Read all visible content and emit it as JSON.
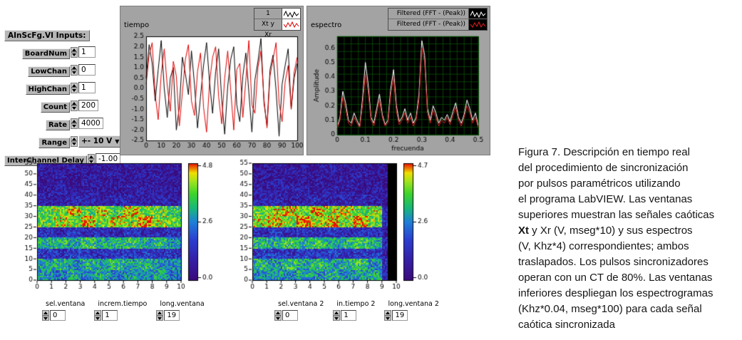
{
  "inputs_panel": {
    "title": "AInScFg.VI Inputs:",
    "fields": [
      {
        "label": "BoardNum",
        "value": "1"
      },
      {
        "label": "LowChan",
        "value": "0"
      },
      {
        "label": "HighChan",
        "value": "1"
      },
      {
        "label": "Count",
        "value": "200"
      },
      {
        "label": "Rate",
        "value": "4000"
      },
      {
        "label": "Range",
        "value": "+- 10 V"
      },
      {
        "label": "InterChannel Delay",
        "value": "-1.00"
      }
    ]
  },
  "time_plot": {
    "title": "tiempo",
    "legend": [
      {
        "label": "1"
      },
      {
        "label": "Xt y Xr"
      }
    ]
  },
  "spectrum_plot": {
    "title": "espectro",
    "legend": [
      {
        "label": "Filtered (FFT - (Peak))"
      },
      {
        "label": "Filtered (FFT - (Peak))"
      }
    ]
  },
  "left_controls": {
    "items": [
      {
        "label": "sel.ventana",
        "value": "0"
      },
      {
        "label": "increm.tiempo",
        "value": "1"
      },
      {
        "label": "long.ventana",
        "value": "19"
      }
    ]
  },
  "right_controls": {
    "items": [
      {
        "label": "sel.ventana 2",
        "value": "0"
      },
      {
        "label": "in.tiempo 2",
        "value": "1"
      },
      {
        "label": "long.ventana 2",
        "value": "19"
      }
    ]
  },
  "caption": {
    "lines": [
      "Figura 7. Descripción en tiempo real",
      "del procedimiento de sincronización",
      "por pulsos paramétricos utilizando",
      "el programa LabVIEW. Las ventanas",
      "superiores muestran las señales caóticas"
    ],
    "bold_word": "Xt",
    "line6_rest": " y Xr (V, mseg*10) y sus espectros",
    "lines_tail": [
      "(V, Khz*4) correspondientes; ambos",
      "traslapados. Los pulsos sincronizadores",
      "operan con un CT de 80%. Las ventanas",
      "inferiores despliegan los espectrogramas",
      "(Khz*0.04, mseg*100) para cada señal",
      "caótica sincronizada"
    ]
  },
  "chart_data": [
    {
      "id": "tiempo",
      "type": "line",
      "title": "tiempo",
      "xlim": [
        0,
        100
      ],
      "ylim": [
        -2.5,
        2.5
      ],
      "x_start": 0,
      "x_step": 2,
      "xticks": [
        "0",
        "10",
        "20",
        "30",
        "40",
        "50",
        "60",
        "70",
        "80",
        "90",
        "100"
      ],
      "yticks": [
        "2.5",
        "2.0",
        "1.5",
        "1.0",
        "0.5",
        "0.0",
        "-0.5",
        "-1.0",
        "-1.5",
        "-2.0",
        "-2.5"
      ],
      "plot_bg": "#ffffff",
      "legend_position": "top-right",
      "series": [
        {
          "name": "Xt",
          "color": "#000000",
          "values": [
            0.5,
            2.1,
            1.2,
            -0.6,
            0.9,
            2.3,
            0.0,
            -1.4,
            0.5,
            1.0,
            -2.0,
            -0.9,
            1.5,
            0.7,
            -0.3,
            1.8,
            0.2,
            -1.9,
            -0.4,
            1.1,
            2.2,
            0.3,
            -1.2,
            0.8,
            1.9,
            -0.5,
            -2.2,
            0.1,
            1.4,
            2.0,
            -0.8,
            -1.6,
            0.6,
            1.7,
            -0.2,
            -2.1,
            0.4,
            1.3,
            2.4,
            -0.7,
            -1.8,
            0.9,
            1.6,
            -0.1,
            -2.3,
            0.2,
            1.1,
            1.9,
            -1.0,
            0.5,
            1.2
          ]
        },
        {
          "name": "Xr",
          "color": "#e00000",
          "values": [
            0.2,
            1.6,
            2.2,
            -0.3,
            -1.5,
            0.7,
            1.9,
            0.1,
            -1.1,
            1.3,
            0.6,
            -1.8,
            -0.2,
            1.4,
            2.1,
            -0.6,
            -1.3,
            0.8,
            1.7,
            -0.9,
            -2.1,
            0.3,
            1.5,
            2.0,
            -0.4,
            -1.7,
            0.5,
            1.8,
            -0.1,
            -2.0,
            0.9,
            1.2,
            -1.4,
            0.4,
            2.3,
            -0.8,
            -1.2,
            1.0,
            1.8,
            -0.5,
            -1.9,
            0.6,
            1.4,
            2.2,
            -0.7,
            -1.6,
            0.3,
            1.1,
            -1.0,
            0.8,
            1.5
          ]
        }
      ]
    },
    {
      "id": "espectro",
      "type": "line",
      "title": "espectro",
      "xlabel": "frecuenda",
      "ylabel": "Amplitude",
      "xlim": [
        0,
        0.5
      ],
      "ylim": [
        0,
        0.68
      ],
      "x_start": 0,
      "x_step": 0.01,
      "xticks": [
        "0",
        "0.1",
        "0.2",
        "0.3",
        "0.4",
        "0.5"
      ],
      "yticks": [
        "0",
        "0.1",
        "0.2",
        "0.3",
        "0.4",
        "0.5",
        "0.6"
      ],
      "plot_bg": "#000000",
      "grid_color": "#0c6c0c",
      "legend_position": "top-right",
      "series": [
        {
          "name": "Filtered (FFT - (Peak))",
          "color": "#ffffff",
          "values": [
            0.05,
            0.12,
            0.3,
            0.22,
            0.1,
            0.08,
            0.15,
            0.1,
            0.06,
            0.25,
            0.5,
            0.35,
            0.12,
            0.08,
            0.18,
            0.28,
            0.14,
            0.07,
            0.1,
            0.32,
            0.45,
            0.2,
            0.09,
            0.12,
            0.18,
            0.1,
            0.15,
            0.08,
            0.12,
            0.28,
            0.65,
            0.55,
            0.18,
            0.1,
            0.2,
            0.15,
            0.08,
            0.12,
            0.1,
            0.14,
            0.09,
            0.16,
            0.22,
            0.12,
            0.08,
            0.14,
            0.24,
            0.18,
            0.1,
            0.15,
            0.06
          ]
        },
        {
          "name": "Filtered (FFT - (Peak)) 2",
          "color": "#e02020",
          "values": [
            0.04,
            0.1,
            0.26,
            0.18,
            0.08,
            0.06,
            0.12,
            0.08,
            0.05,
            0.2,
            0.42,
            0.3,
            0.1,
            0.06,
            0.15,
            0.24,
            0.12,
            0.06,
            0.08,
            0.28,
            0.4,
            0.16,
            0.07,
            0.1,
            0.15,
            0.08,
            0.12,
            0.06,
            0.1,
            0.24,
            0.6,
            0.5,
            0.15,
            0.08,
            0.17,
            0.12,
            0.06,
            0.1,
            0.08,
            0.12,
            0.07,
            0.13,
            0.19,
            0.1,
            0.06,
            0.12,
            0.2,
            0.15,
            0.08,
            0.12,
            0.05
          ]
        }
      ]
    },
    {
      "id": "espectrograma-izq",
      "type": "heatmap",
      "xlim": [
        0,
        10
      ],
      "ylim": [
        0,
        55
      ],
      "xticks": [
        "0",
        "1",
        "2",
        "3",
        "4",
        "5",
        "6",
        "7",
        "8",
        "9",
        "10"
      ],
      "yticks": [
        "0",
        "5",
        "10",
        "15",
        "20",
        "25",
        "30",
        "35",
        "40",
        "45",
        "50",
        "55"
      ],
      "colorbar": {
        "max": 4.8,
        "max_label": "4.8",
        "mid_label": "2.6",
        "min_label": "0.0"
      },
      "rows_bottom_to_top": true,
      "matrix": [
        [
          2.6,
          2.2,
          2.8,
          2.4,
          2.9,
          2.3,
          2.7,
          2.5,
          2.8,
          2.2
        ],
        [
          2.8,
          3.0,
          2.5,
          2.9,
          2.6,
          3.1,
          2.7,
          3.0,
          2.6,
          2.4
        ],
        [
          1.4,
          1.2,
          1.5,
          1.3,
          1.2,
          1.4,
          1.3,
          1.5,
          1.2,
          1.3
        ],
        [
          2.9,
          3.1,
          2.7,
          3.2,
          2.8,
          3.0,
          3.2,
          2.9,
          3.1,
          2.6
        ],
        [
          1.2,
          1.0,
          1.3,
          1.1,
          1.2,
          1.0,
          1.3,
          1.1,
          1.0,
          1.2
        ],
        [
          3.6,
          4.0,
          3.8,
          4.4,
          3.7,
          4.1,
          3.9,
          4.6,
          3.8,
          3.5
        ],
        [
          3.4,
          3.7,
          4.2,
          3.6,
          4.0,
          3.5,
          4.3,
          3.7,
          3.6,
          3.3
        ],
        [
          0.9,
          0.8,
          1.0,
          0.9,
          0.8,
          1.0,
          0.9,
          0.8,
          1.0,
          0.8
        ],
        [
          0.7,
          0.8,
          0.6,
          0.8,
          0.7,
          0.6,
          0.8,
          0.7,
          0.6,
          0.7
        ],
        [
          0.6,
          0.7,
          0.5,
          0.7,
          0.6,
          0.7,
          0.5,
          0.6,
          0.7,
          0.5
        ],
        [
          0.6,
          0.5,
          0.7,
          0.5,
          0.6,
          0.5,
          0.7,
          0.6,
          0.5,
          0.6
        ]
      ]
    },
    {
      "id": "espectrograma-der",
      "type": "heatmap",
      "xlim": [
        0,
        10
      ],
      "ylim": [
        0,
        55
      ],
      "xticks": [
        "0",
        "1",
        "2",
        "3",
        "4",
        "5",
        "6",
        "7",
        "8",
        "9",
        "10"
      ],
      "yticks": [
        "0",
        "5",
        "10",
        "15",
        "20",
        "25",
        "30",
        "35",
        "40",
        "45",
        "50",
        "55"
      ],
      "colorbar": {
        "max": 4.7,
        "max_label": "4.7",
        "mid_label": "2.6",
        "min_label": "0.0"
      },
      "rows_bottom_to_top": true,
      "blank_from_x": 9.4,
      "matrix": [
        [
          2.4,
          2.7,
          2.3,
          2.8,
          2.5,
          2.9,
          2.4,
          2.6,
          2.8,
          1.0
        ],
        [
          2.9,
          2.6,
          3.1,
          2.7,
          3.0,
          2.6,
          2.9,
          3.1,
          2.5,
          1.0
        ],
        [
          1.3,
          1.5,
          1.2,
          1.4,
          1.3,
          1.5,
          1.2,
          1.3,
          1.4,
          0.8
        ],
        [
          3.0,
          2.8,
          3.2,
          2.9,
          3.1,
          2.7,
          3.0,
          3.2,
          2.8,
          1.0
        ],
        [
          1.1,
          1.3,
          1.0,
          1.2,
          1.1,
          1.3,
          1.0,
          1.2,
          1.1,
          0.7
        ],
        [
          3.8,
          4.2,
          3.6,
          4.5,
          3.9,
          4.3,
          3.7,
          4.4,
          3.6,
          1.2
        ],
        [
          3.5,
          3.9,
          4.1,
          3.6,
          4.2,
          3.8,
          4.0,
          3.5,
          3.7,
          1.1
        ],
        [
          0.9,
          1.0,
          0.8,
          0.9,
          1.0,
          0.8,
          0.9,
          1.0,
          0.8,
          0.5
        ],
        [
          0.7,
          0.6,
          0.8,
          0.7,
          0.6,
          0.8,
          0.7,
          0.6,
          0.7,
          0.4
        ],
        [
          0.6,
          0.7,
          0.5,
          0.6,
          0.7,
          0.5,
          0.6,
          0.7,
          0.5,
          0.4
        ],
        [
          0.5,
          0.6,
          0.7,
          0.5,
          0.6,
          0.7,
          0.5,
          0.6,
          0.5,
          0.4
        ]
      ]
    }
  ]
}
